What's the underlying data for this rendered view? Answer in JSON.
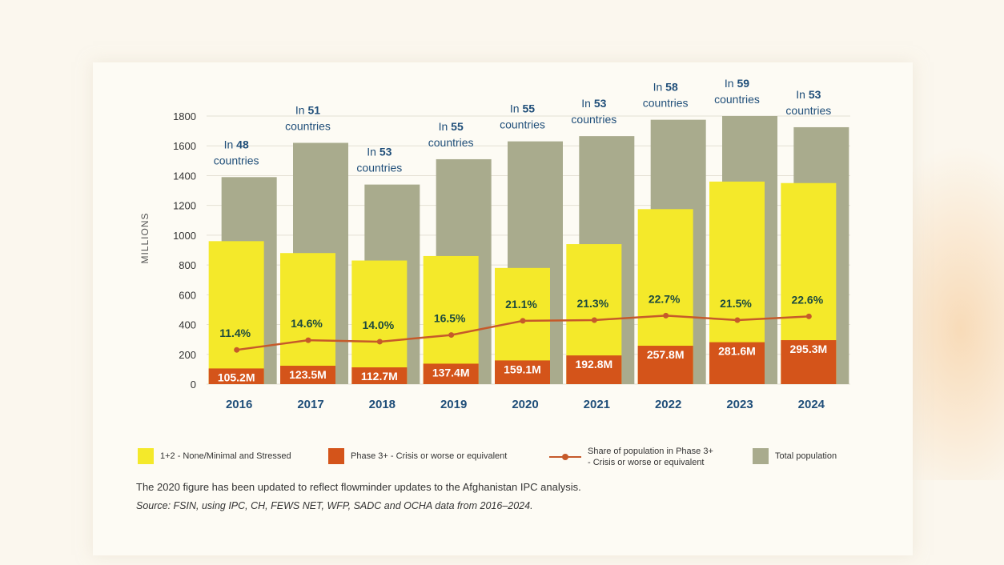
{
  "chart_data": {
    "type": "bar",
    "ylabel": "MILLIONS",
    "ylim": [
      0,
      1800
    ],
    "yticks": [
      0,
      200,
      400,
      600,
      800,
      1000,
      1200,
      1400,
      1600,
      1800
    ],
    "categories": [
      "2016",
      "2017",
      "2018",
      "2019",
      "2020",
      "2021",
      "2022",
      "2023",
      "2024"
    ],
    "country_counts": [
      {
        "prefix": "In",
        "count": "48",
        "suffix": "countries"
      },
      {
        "prefix": "In",
        "count": "51",
        "suffix": "countries"
      },
      {
        "prefix": "In",
        "count": "53",
        "suffix": "countries"
      },
      {
        "prefix": "In",
        "count": "55",
        "suffix": "countries"
      },
      {
        "prefix": "In",
        "count": "55",
        "suffix": "countries"
      },
      {
        "prefix": "In",
        "count": "53",
        "suffix": "countries"
      },
      {
        "prefix": "In",
        "count": "58",
        "suffix": "countries"
      },
      {
        "prefix": "In",
        "count": "59",
        "suffix": "countries"
      },
      {
        "prefix": "In",
        "count": "53",
        "suffix": "countries"
      }
    ],
    "series": [
      {
        "name": "Total population",
        "values": [
          1390,
          1620,
          1340,
          1510,
          1630,
          1665,
          1775,
          1800,
          1725
        ]
      },
      {
        "name": "1+2 - None/Minimal and Stressed",
        "values": [
          960,
          880,
          830,
          860,
          780,
          940,
          1175,
          1360,
          1350
        ]
      },
      {
        "name": "Phase 3+ - Crisis or worse or equivalent",
        "values": [
          105.2,
          123.5,
          112.7,
          137.4,
          159.1,
          192.8,
          257.8,
          281.6,
          295.3
        ],
        "labels": [
          "105.2M",
          "123.5M",
          "112.7M",
          "137.4M",
          "159.1M",
          "192.8M",
          "257.8M",
          "281.6M",
          "295.3M"
        ]
      },
      {
        "name": "Share of population in Phase 3+ - Crisis or worse or equivalent",
        "axis_values": [
          230,
          295,
          285,
          330,
          425,
          430,
          460,
          430,
          455
        ],
        "labels": [
          "11.4%",
          "14.6%",
          "14.0%",
          "16.5%",
          "21.1%",
          "21.3%",
          "22.7%",
          "21.5%",
          "22.6%"
        ]
      }
    ]
  },
  "colors": {
    "total": "#a9ab8d",
    "stressed": "#f4e92a",
    "phase3": "#d4541a",
    "line": "#c65a2a",
    "label_blue": "#1f4e79",
    "label_green": "#1d4a3e"
  },
  "legend": {
    "stressed": "1+2 - None/Minimal and Stressed",
    "phase3": "Phase 3+ - Crisis or worse or equivalent",
    "share_line1": "Share of population in Phase 3+",
    "share_line2": "- Crisis or worse or equivalent",
    "total": "Total population"
  },
  "footnote": {
    "note": "The 2020 figure has been updated to reflect flowminder updates to the Afghanistan IPC analysis.",
    "source": "Source: FSIN, using IPC, CH, FEWS NET, WFP, SADC and OCHA data from 2016–2024."
  }
}
